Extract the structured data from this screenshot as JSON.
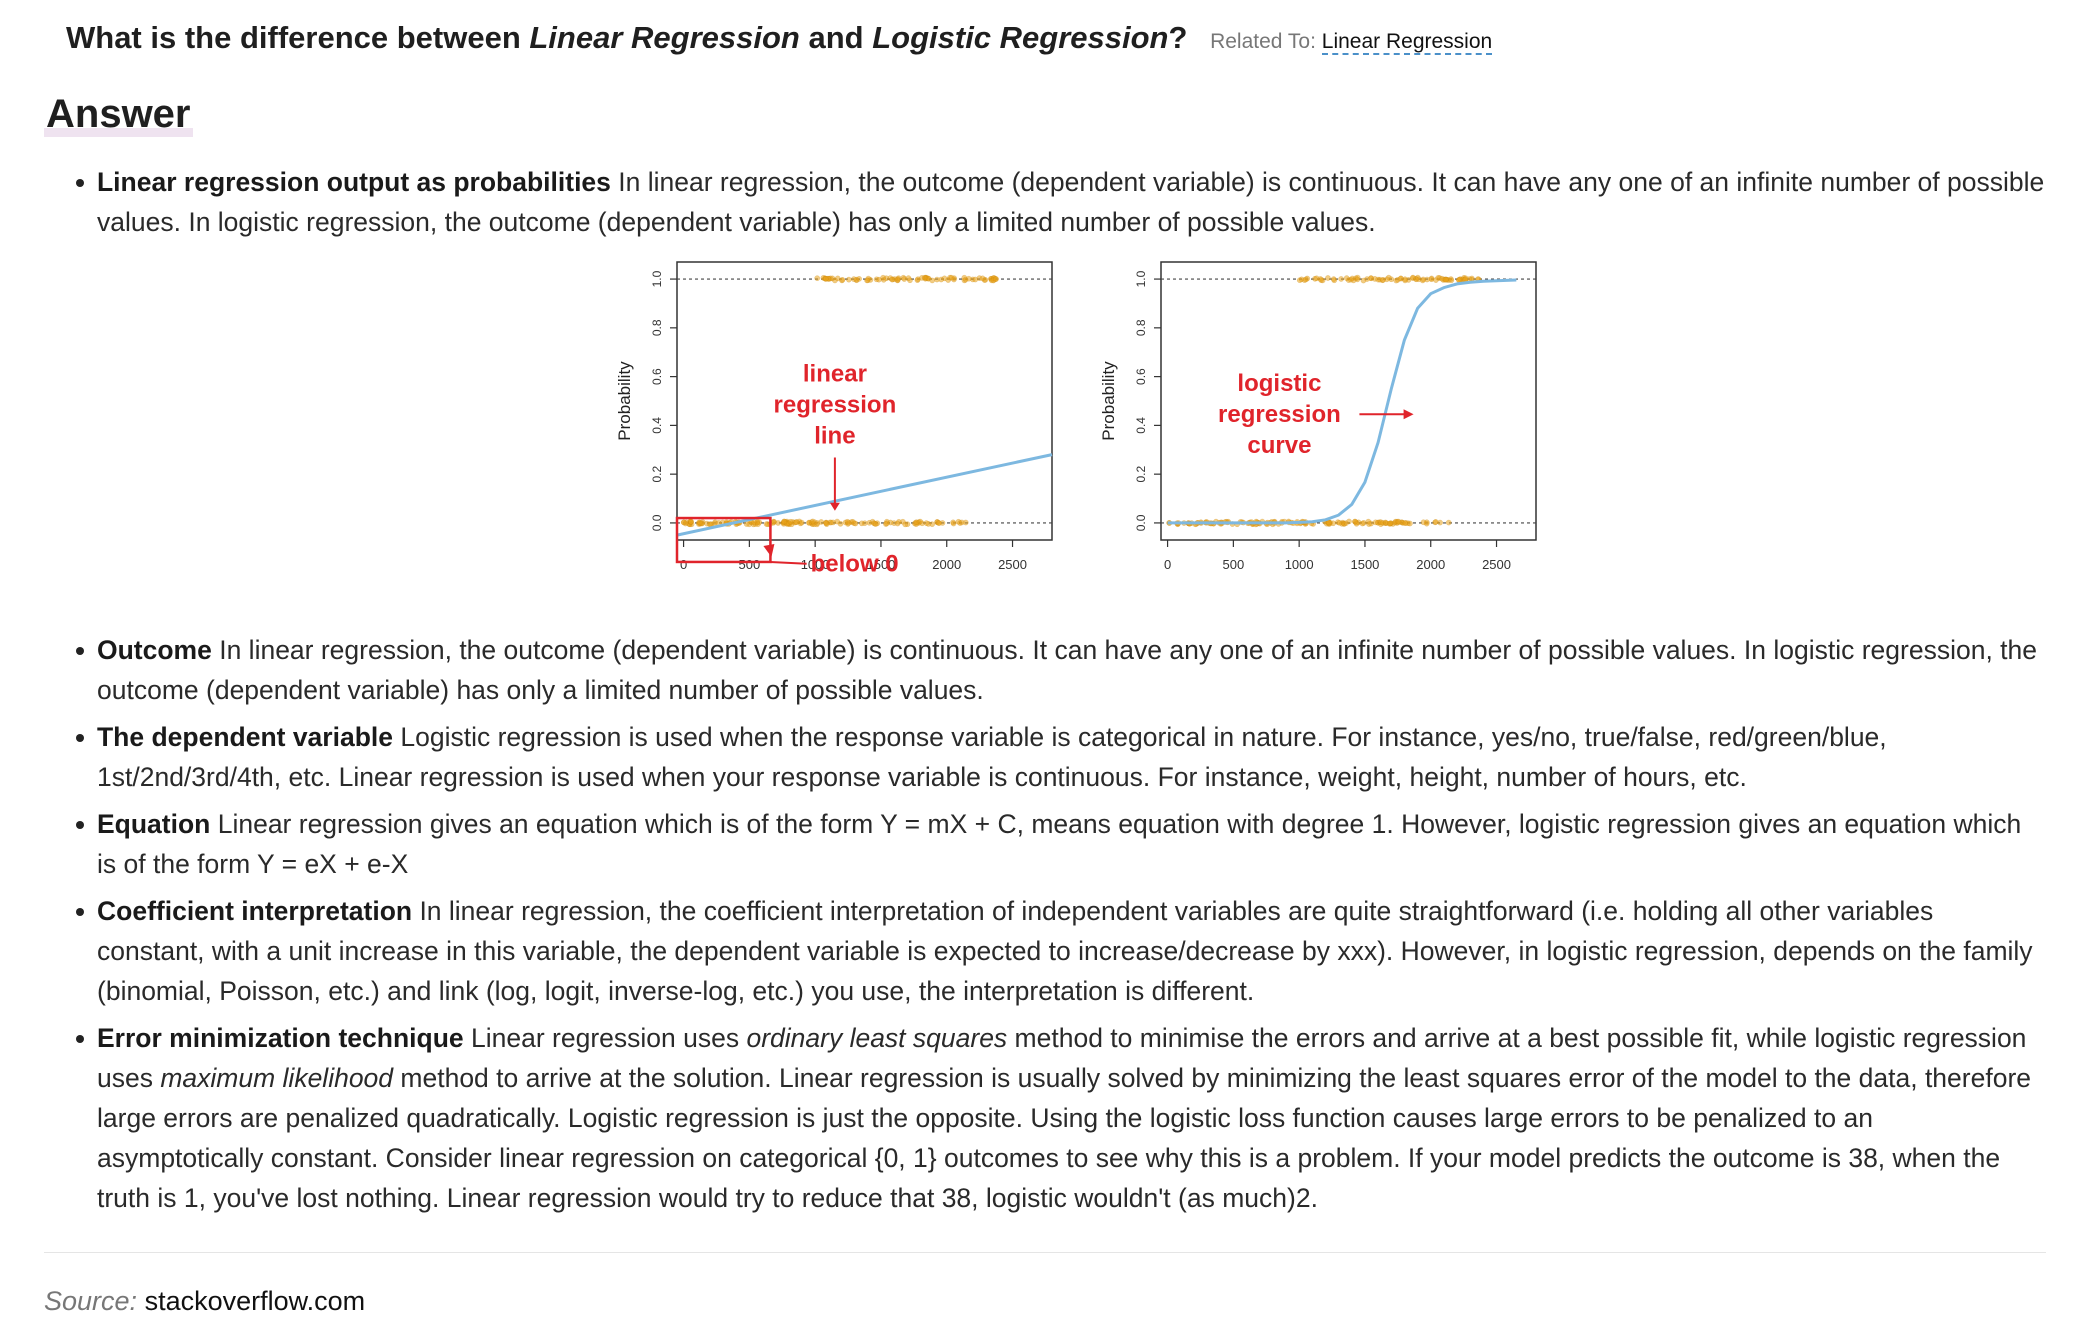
{
  "question": {
    "prefix": "What is the difference between ",
    "term1": "Linear Regression",
    "middle": " and ",
    "term2": "Logistic Regression",
    "suffix": "?",
    "related_label": "Related To:",
    "related_link": "Linear Regression"
  },
  "answer_heading": "Answer",
  "bullets_top": [
    {
      "lead": "Linear regression output as probabilities",
      "text": " In linear regression, the outcome (dependent variable) is continuous. It can have any one of an infinite number of possible values. In logistic regression, the outcome (dependent variable) has only a limited number of possible values."
    }
  ],
  "bullets": [
    {
      "lead": "Outcome",
      "text": " In linear regression, the outcome (dependent variable) is continuous. It can have any one of an infinite number of possible values. In logistic regression, the outcome (dependent variable) has only a limited number of possible values."
    },
    {
      "lead": "The dependent variable",
      "text": " Logistic regression is used when the response variable is categorical in nature. For instance, yes/no, true/false, red/green/blue, 1st/2nd/3rd/4th, etc. Linear regression is used when your response variable is continuous. For instance, weight, height, number of hours, etc."
    },
    {
      "lead": "Equation",
      "text": " Linear regression gives an equation which is of the form Y = mX + C, means equation with degree 1. However, logistic regression gives an equation which is of the form Y = eX + e-X"
    },
    {
      "lead": "Coefficient interpretation",
      "text": " In linear regression, the coefficient interpretation of independent variables are quite straightforward (i.e. holding all other variables constant, with a unit increase in this variable, the dependent variable is expected to increase/decrease by xxx). However, in logistic regression, depends on the family (binomial, Poisson, etc.) and link (log, logit, inverse-log, etc.) you use, the interpretation is different."
    }
  ],
  "last_bullet": {
    "lead": "Error minimization technique",
    "t1": " Linear regression uses ",
    "em1": "ordinary least squares",
    "t2": " method to minimise the errors and arrive at a best possible fit, while logistic regression uses ",
    "em2": "maximum likelihood",
    "t3": " method to arrive at the solution. Linear regression is usually solved by minimizing the least squares error of the model to the data, therefore large errors are penalized quadratically. Logistic regression is just the opposite. Using the logistic loss function causes large errors to be penalized to an asymptotically constant. Consider linear regression on categorical {0, 1} outcomes to see why this is a problem. If your model predicts the outcome is 38, when the truth is 1, you've lost nothing. Linear regression would try to reduce that 38, logistic wouldn't (as much)",
    "ref": "2",
    "t4": "."
  },
  "source": {
    "label": "Source:",
    "value": "stackoverflow.com"
  },
  "colors": {
    "curve": "#7db8e0",
    "points": "#e8a21c",
    "annotation": "#e0242b"
  },
  "chart_data": [
    {
      "type": "line",
      "title": "",
      "xlabel": "",
      "ylabel": "Probability",
      "xlim": [
        -50,
        2800
      ],
      "ylim": [
        -0.07,
        1.07
      ],
      "xticks": [
        0,
        500,
        1000,
        1500,
        2000,
        2500
      ],
      "yticks": [
        "0.0",
        "0.2",
        "0.4",
        "0.6",
        "0.8",
        "1.0"
      ],
      "reference_lines_y": [
        0,
        1
      ],
      "series": [
        {
          "x": [
            -50,
            2800
          ],
          "y": [
            -0.05,
            0.28
          ]
        }
      ],
      "points_y0": {
        "x_from": 0,
        "x_to": 2150
      },
      "points_y1": {
        "x_from": 1000,
        "x_to": 2400
      },
      "annotations": [
        {
          "text": [
            "linear",
            "regression",
            "line"
          ],
          "x": 1150,
          "y": 0.58
        },
        {
          "text": [
            "below 0"
          ],
          "x": 1300,
          "y": -0.2
        }
      ]
    },
    {
      "type": "line",
      "title": "",
      "xlabel": "",
      "ylabel": "Probability",
      "xlim": [
        -50,
        2800
      ],
      "ylim": [
        -0.07,
        1.07
      ],
      "xticks": [
        0,
        500,
        1000,
        1500,
        2000,
        2500
      ],
      "yticks": [
        "0.0",
        "0.2",
        "0.4",
        "0.6",
        "0.8",
        "1.0"
      ],
      "reference_lines_y": [
        0,
        1
      ],
      "series": [
        {
          "x": [
            0,
            100,
            200,
            300,
            400,
            500,
            600,
            700,
            800,
            900,
            1000,
            1100,
            1200,
            1300,
            1400,
            1500,
            1600,
            1700,
            1800,
            1900,
            2000,
            2100,
            2200,
            2300,
            2400,
            2500,
            2600,
            2650
          ],
          "y": [
            0,
            0,
            0,
            0,
            0,
            0,
            0,
            0,
            0,
            0,
            0.002,
            0.005,
            0.013,
            0.032,
            0.076,
            0.167,
            0.33,
            0.55,
            0.75,
            0.88,
            0.94,
            0.965,
            0.98,
            0.987,
            0.991,
            0.993,
            0.995,
            0.996
          ]
        }
      ],
      "points_y0": {
        "x_from": 0,
        "x_to": 2150
      },
      "points_y1": {
        "x_from": 1000,
        "x_to": 2400
      },
      "annotations": [
        {
          "text": [
            "logistic",
            "regression",
            "curve"
          ],
          "x": 850,
          "y": 0.54
        }
      ]
    }
  ]
}
